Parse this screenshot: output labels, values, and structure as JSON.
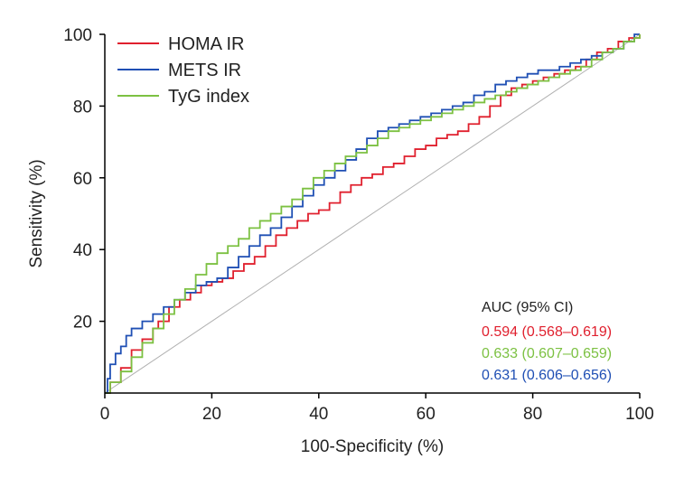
{
  "chart_data": {
    "type": "line",
    "title": "",
    "xlabel": "100-Specificity (%)",
    "ylabel": "Sensitivity (%)",
    "xlim": [
      0,
      100
    ],
    "ylim": [
      0,
      100
    ],
    "x_ticks": [
      0,
      20,
      40,
      60,
      80,
      100
    ],
    "y_ticks": [
      20,
      40,
      60,
      80,
      100
    ],
    "x_tick_labels": [
      "0",
      "20",
      "40",
      "60",
      "80",
      "100"
    ],
    "y_tick_labels": [
      "20",
      "40",
      "60",
      "80",
      "100"
    ],
    "legend_position": "top-left",
    "reference_line": {
      "name": "chance",
      "points": [
        [
          0,
          0
        ],
        [
          100,
          100
        ]
      ],
      "color": "#b0b0b0"
    },
    "series": [
      {
        "name": "HOMA IR",
        "color": "#e0202e",
        "points": [
          [
            0,
            0
          ],
          [
            1,
            3
          ],
          [
            3,
            7
          ],
          [
            5,
            12
          ],
          [
            7,
            15
          ],
          [
            9,
            18
          ],
          [
            10,
            20
          ],
          [
            12,
            24
          ],
          [
            14,
            26
          ],
          [
            16,
            28
          ],
          [
            18,
            30
          ],
          [
            20,
            31
          ],
          [
            22,
            32
          ],
          [
            24,
            34
          ],
          [
            26,
            36
          ],
          [
            28,
            38
          ],
          [
            30,
            41
          ],
          [
            32,
            44
          ],
          [
            34,
            46
          ],
          [
            36,
            48
          ],
          [
            38,
            50
          ],
          [
            40,
            51
          ],
          [
            42,
            53
          ],
          [
            44,
            56
          ],
          [
            46,
            58
          ],
          [
            48,
            60
          ],
          [
            50,
            61
          ],
          [
            52,
            63
          ],
          [
            54,
            64
          ],
          [
            56,
            66
          ],
          [
            58,
            68
          ],
          [
            60,
            69
          ],
          [
            62,
            71
          ],
          [
            64,
            72
          ],
          [
            66,
            73
          ],
          [
            68,
            75
          ],
          [
            70,
            77
          ],
          [
            72,
            80
          ],
          [
            74,
            83
          ],
          [
            76,
            85
          ],
          [
            78,
            86
          ],
          [
            80,
            87
          ],
          [
            82,
            88
          ],
          [
            84,
            89
          ],
          [
            86,
            90
          ],
          [
            88,
            91
          ],
          [
            90,
            93
          ],
          [
            92,
            95
          ],
          [
            94,
            96
          ],
          [
            96,
            98
          ],
          [
            98,
            99
          ],
          [
            100,
            100
          ]
        ]
      },
      {
        "name": "METS IR",
        "color": "#1f4fb4",
        "points": [
          [
            0,
            0
          ],
          [
            0.5,
            4
          ],
          [
            1,
            8
          ],
          [
            2,
            11
          ],
          [
            3,
            13
          ],
          [
            4,
            16
          ],
          [
            5,
            18
          ],
          [
            7,
            20
          ],
          [
            9,
            22
          ],
          [
            11,
            24
          ],
          [
            13,
            26
          ],
          [
            15,
            28
          ],
          [
            17,
            30
          ],
          [
            19,
            31
          ],
          [
            21,
            32
          ],
          [
            23,
            35
          ],
          [
            25,
            38
          ],
          [
            27,
            41
          ],
          [
            29,
            44
          ],
          [
            31,
            46
          ],
          [
            33,
            49
          ],
          [
            35,
            52
          ],
          [
            37,
            55
          ],
          [
            39,
            58
          ],
          [
            41,
            60
          ],
          [
            43,
            62
          ],
          [
            45,
            65
          ],
          [
            47,
            68
          ],
          [
            49,
            71
          ],
          [
            51,
            73
          ],
          [
            53,
            74
          ],
          [
            55,
            75
          ],
          [
            57,
            76
          ],
          [
            59,
            77
          ],
          [
            61,
            78
          ],
          [
            63,
            79
          ],
          [
            65,
            80
          ],
          [
            67,
            81
          ],
          [
            69,
            83
          ],
          [
            71,
            84
          ],
          [
            73,
            86
          ],
          [
            75,
            87
          ],
          [
            77,
            88
          ],
          [
            79,
            89
          ],
          [
            81,
            90
          ],
          [
            83,
            90
          ],
          [
            85,
            91
          ],
          [
            87,
            92
          ],
          [
            89,
            93
          ],
          [
            91,
            94
          ],
          [
            93,
            95
          ],
          [
            95,
            96
          ],
          [
            97,
            98
          ],
          [
            99,
            100
          ],
          [
            100,
            100
          ]
        ]
      },
      {
        "name": "TyG index",
        "color": "#7cc142",
        "points": [
          [
            0,
            0
          ],
          [
            1,
            3
          ],
          [
            3,
            6
          ],
          [
            5,
            10
          ],
          [
            7,
            14
          ],
          [
            9,
            18
          ],
          [
            11,
            22
          ],
          [
            13,
            26
          ],
          [
            15,
            29
          ],
          [
            17,
            33
          ],
          [
            19,
            36
          ],
          [
            21,
            39
          ],
          [
            23,
            41
          ],
          [
            25,
            43
          ],
          [
            27,
            46
          ],
          [
            29,
            48
          ],
          [
            31,
            50
          ],
          [
            33,
            52
          ],
          [
            35,
            54
          ],
          [
            37,
            57
          ],
          [
            39,
            60
          ],
          [
            41,
            62
          ],
          [
            43,
            64
          ],
          [
            45,
            66
          ],
          [
            47,
            67
          ],
          [
            49,
            69
          ],
          [
            51,
            71
          ],
          [
            53,
            73
          ],
          [
            55,
            74
          ],
          [
            57,
            75
          ],
          [
            59,
            76
          ],
          [
            61,
            77
          ],
          [
            63,
            78
          ],
          [
            65,
            79
          ],
          [
            67,
            80
          ],
          [
            69,
            81
          ],
          [
            71,
            82
          ],
          [
            73,
            83
          ],
          [
            75,
            84
          ],
          [
            77,
            85
          ],
          [
            79,
            86
          ],
          [
            81,
            87
          ],
          [
            83,
            88
          ],
          [
            85,
            89
          ],
          [
            87,
            90
          ],
          [
            89,
            91
          ],
          [
            91,
            93
          ],
          [
            93,
            95
          ],
          [
            95,
            96
          ],
          [
            97,
            98
          ],
          [
            99,
            99
          ],
          [
            100,
            100
          ]
        ]
      }
    ],
    "auc_table": {
      "header": "AUC (95% CI)",
      "rows": [
        {
          "text": "0.594 (0.568–0.619)",
          "color": "#e0202e"
        },
        {
          "text": "0.633 (0.607–0.659)",
          "color": "#7cc142"
        },
        {
          "text": "0.631 (0.606–0.656)",
          "color": "#1f4fb4"
        }
      ]
    }
  }
}
